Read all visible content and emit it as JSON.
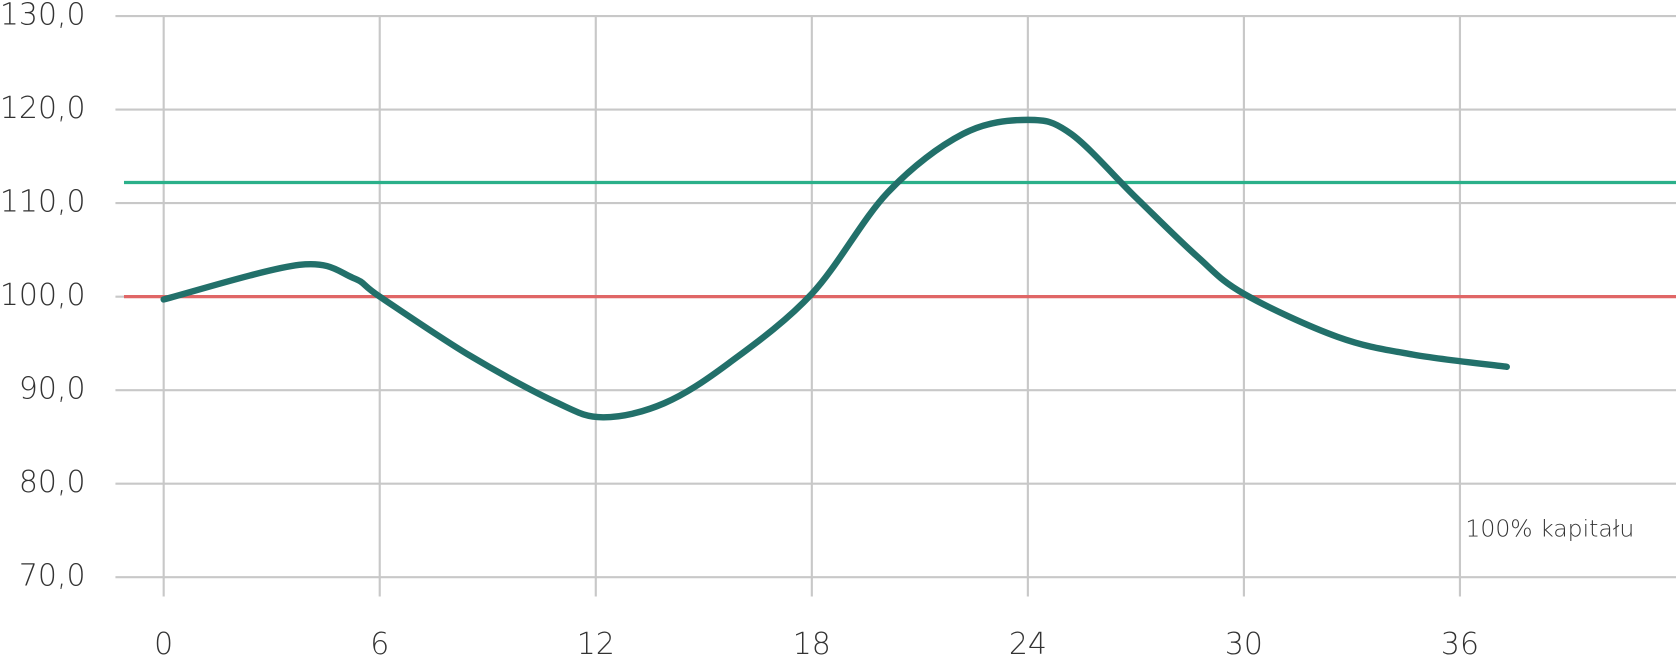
{
  "chart_data": {
    "type": "line",
    "annotation": "100% kapitału",
    "x": [
      0,
      3.77,
      5.26,
      6,
      8.5,
      10.9,
      12.2,
      13.9,
      15.7,
      18,
      20.1,
      22.2,
      24,
      25.2,
      27,
      28.7,
      30,
      32.6,
      34.7,
      37.3
    ],
    "series": [
      {
        "color": "#22706a",
        "values": [
          99.7,
          103.4,
          102.0,
          100,
          93.7,
          88.7,
          87.1,
          88.6,
          92.9,
          100.3,
          111.1,
          117.4,
          118.9,
          117.4,
          110.6,
          104.3,
          100.3,
          95.7,
          93.8,
          92.5
        ]
      }
    ],
    "reference_lines": [
      {
        "value": 112.2,
        "color": "#2bb08a"
      },
      {
        "value": 100,
        "color": "#e06666"
      }
    ],
    "xlim": [
      -1.34,
      42
    ],
    "ylim": [
      70,
      130
    ],
    "xticks": [
      0,
      6,
      12,
      18,
      24,
      30,
      36
    ],
    "yticks": [
      {
        "value": 70,
        "label": "70,0"
      },
      {
        "value": 80,
        "label": "80,0"
      },
      {
        "value": 90,
        "label": "90,0"
      },
      {
        "value": 100,
        "label": "100,0"
      },
      {
        "value": 110,
        "label": "110,0"
      },
      {
        "value": 120,
        "label": "120,0"
      },
      {
        "value": 130,
        "label": "130,0"
      }
    ],
    "grid": true
  }
}
